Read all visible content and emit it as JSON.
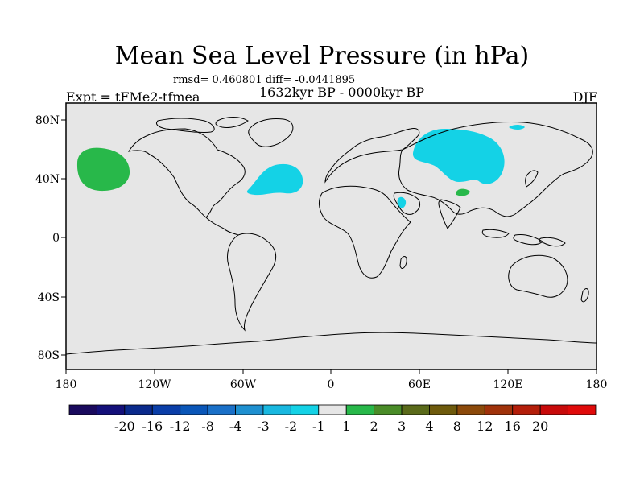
{
  "title": "Mean Sea Level Pressure (in hPa)",
  "stats": "rmsd= 0.460801 diff= -0.0441895",
  "experiment": "Expt = tFMe2-tfmea",
  "period": "1632kyr BP - 0000kyr BP",
  "season": "DJF",
  "x_ticks": [
    "180",
    "120W",
    "60W",
    "0",
    "60E",
    "120E",
    "180"
  ],
  "y_ticks": [
    "80N",
    "40N",
    "0",
    "40S",
    "80S"
  ],
  "colorbar": {
    "colors": [
      "#1a0a5e",
      "#14107a",
      "#0a2a8c",
      "#0a3ea8",
      "#0a56b8",
      "#1a70c8",
      "#1e90d0",
      "#19b8e0",
      "#14d2e6",
      "#e6e6e6",
      "#28b84a",
      "#4a8c28",
      "#5a6a1a",
      "#6e5a0c",
      "#8c4a0a",
      "#a0320a",
      "#b41e0a",
      "#c80a0a",
      "#e00a0a"
    ],
    "labels": [
      "-20",
      "-16",
      "-12",
      "-8",
      "-4",
      "-3",
      "-2",
      "-1",
      "1",
      "2",
      "3",
      "4",
      "8",
      "12",
      "16",
      "20"
    ]
  },
  "map": {
    "ocean_color": "#e6e6e6",
    "anomaly_regions": [
      {
        "name": "north-pacific-positive",
        "value_range": "1 to 2",
        "color": "#28b84a"
      },
      {
        "name": "north-atlantic-negative",
        "value_range": "-2 to -1",
        "color": "#14d2e6"
      },
      {
        "name": "siberia-negative",
        "value_range": "-2 to -1",
        "color": "#14d2e6"
      },
      {
        "name": "arabia-negative",
        "value_range": "-2 to -1",
        "color": "#14d2e6"
      },
      {
        "name": "tibet-positive",
        "value_range": "1 to 2",
        "color": "#28b84a"
      }
    ]
  }
}
